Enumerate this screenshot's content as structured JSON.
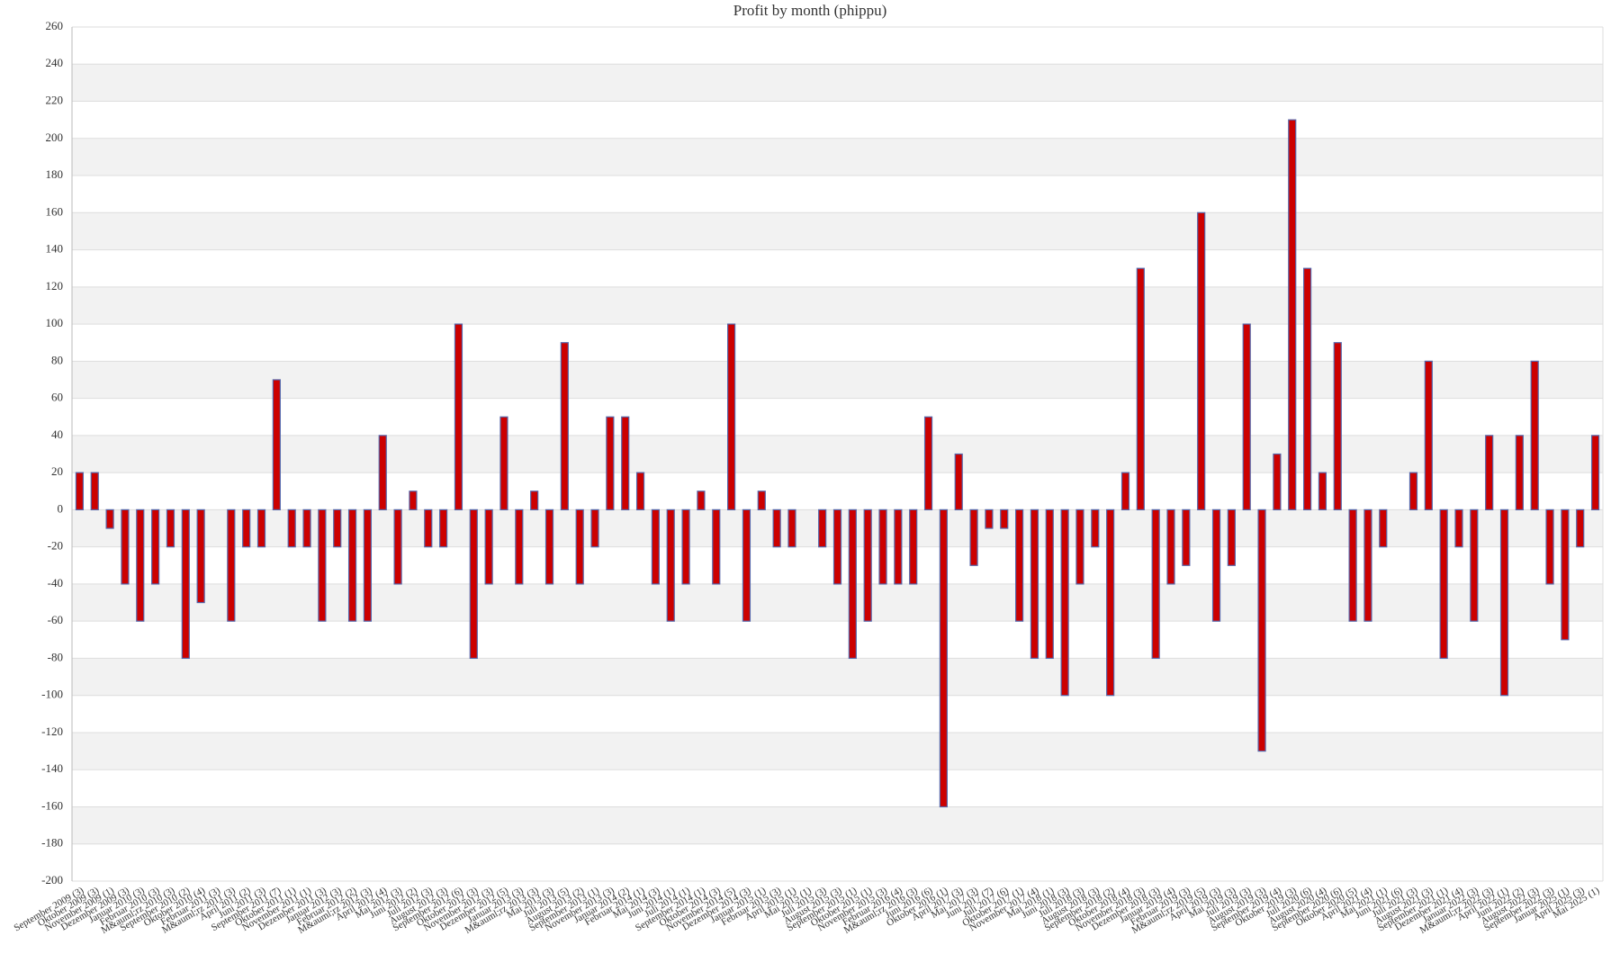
{
  "chart_data": {
    "type": "bar",
    "title": "Profit by month  (phippu)",
    "categories": [
      "September 2009 (3)",
      "Oktober 2009 (3)",
      "November 2009 (1)",
      "Dezember 2009 (3)",
      "Januar 2010 (3)",
      "Februar 2010 (3)",
      "M&auml;rz 2010 (3)",
      "September 2010 (2)",
      "Oktober 2010 (4)",
      "Februar 2011 (3)",
      "M&auml;rz 2011 (3)",
      "April 2011 (2)",
      "Juni 2011 (3)",
      "September 2011 (7)",
      "Oktober 2011 (1)",
      "November 2011 (1)",
      "Dezember 2011 (3)",
      "Januar 2012 (3)",
      "Februar 2012 (2)",
      "M&auml;rz 2012 (3)",
      "April 2012 (4)",
      "Mai 2012 (3)",
      "Juni 2012 (2)",
      "Juli 2012 (3)",
      "August 2012 (3)",
      "September 2012 (6)",
      "Oktober 2012 (3)",
      "November 2012 (3)",
      "Dezember 2012 (5)",
      "Januar 2013 (3)",
      "M&auml;rz 2013 (3)",
      "Mai 2013 (3)",
      "Juli 2013 (5)",
      "August 2013 (2)",
      "September 2013 (1)",
      "November 2013 (3)",
      "Januar 2014 (2)",
      "Februar 2014 (1)",
      "Mai 2014 (3)",
      "Juni 2014 (1)",
      "Juli 2014 (1)",
      "September 2014 (1)",
      "Oktober 2014 (3)",
      "November 2014 (5)",
      "Dezember 2014 (3)",
      "Januar 2015 (1)",
      "Februar 2015 (3)",
      "April 2015 (1)",
      "Mai 2015 (1)",
      "Juli 2015 (3)",
      "August 2015 (3)",
      "September 2015 (1)",
      "Oktober 2015 (1)",
      "November 2015 (3)",
      "Februar 2016 (4)",
      "M&auml;rz 2016 (3)",
      "Juni 2016 (6)",
      "Oktober 2016 (1)",
      "April 2017 (3)",
      "Mai 2017 (3)",
      "Juni 2017 (7)",
      "Juli 2017 (6)",
      "Oktober 2017 (1)",
      "November 2017 (4)",
      "Mai 2018 (1)",
      "Juni 2018 (3)",
      "Juli 2018 (3)",
      "August 2018 (3)",
      "September 2018 (2)",
      "Oktober 2018 (4)",
      "November 2018 (3)",
      "Dezember 2018 (3)",
      "Januar 2019 (4)",
      "Februar 2019 (3)",
      "M&auml;rz 2019 (5)",
      "April 2019 (3)",
      "Mai 2019 (3)",
      "Juli 2019 (3)",
      "August 2019 (3)",
      "September 2019 (4)",
      "Oktober 2019 (3)",
      "Juli 2020 (6)",
      "August 2020 (4)",
      "September 2020 (6)",
      "Oktober 2020 (5)",
      "April 2021 (4)",
      "Mai 2021 (1)",
      "Juni 2021 (6)",
      "Juli 2021 (3)",
      "August 2021 (3)",
      "September 2021 (1)",
      "Dezember 2021 (4)",
      "Januar 2022 (3)",
      "M&auml;rz 2022 (3)",
      "April 2022 (1)",
      "Juni 2022 (2)",
      "August 2022 (3)",
      "September 2022 (3)",
      "Januar 2025 (1)",
      "April 2025 (3)",
      "Mai 2025 (1)"
    ],
    "values": [
      20,
      20,
      -10,
      -40,
      -60,
      -40,
      -20,
      -80,
      -50,
      0,
      -60,
      -20,
      -20,
      70,
      -20,
      -20,
      -60,
      -20,
      -60,
      -60,
      40,
      -40,
      10,
      -20,
      -20,
      100,
      -80,
      -40,
      50,
      -40,
      10,
      -40,
      90,
      -40,
      -20,
      50,
      50,
      20,
      -40,
      -60,
      -40,
      10,
      -40,
      100,
      -60,
      10,
      -20,
      -20,
      0,
      -20,
      -40,
      -80,
      -60,
      -40,
      -40,
      -40,
      50,
      -160,
      30,
      -30,
      -10,
      -10,
      -60,
      -80,
      -80,
      -100,
      -40,
      -20,
      -100,
      20,
      130,
      -80,
      -40,
      -30,
      160,
      -60,
      -30,
      100,
      -130,
      30,
      210,
      130,
      20,
      90,
      -60,
      -60,
      -20,
      0,
      20,
      80,
      -80,
      -20,
      -60,
      40,
      -100,
      40,
      80,
      -40,
      -70,
      -20,
      40
    ],
    "color": "#cc0000",
    "ylim": [
      -200,
      260
    ],
    "yticks": [
      -200,
      -180,
      -160,
      -140,
      -120,
      -100,
      -80,
      -60,
      -40,
      -20,
      0,
      20,
      40,
      60,
      80,
      100,
      120,
      140,
      160,
      180,
      200,
      220,
      240,
      260
    ],
    "grid": true
  }
}
